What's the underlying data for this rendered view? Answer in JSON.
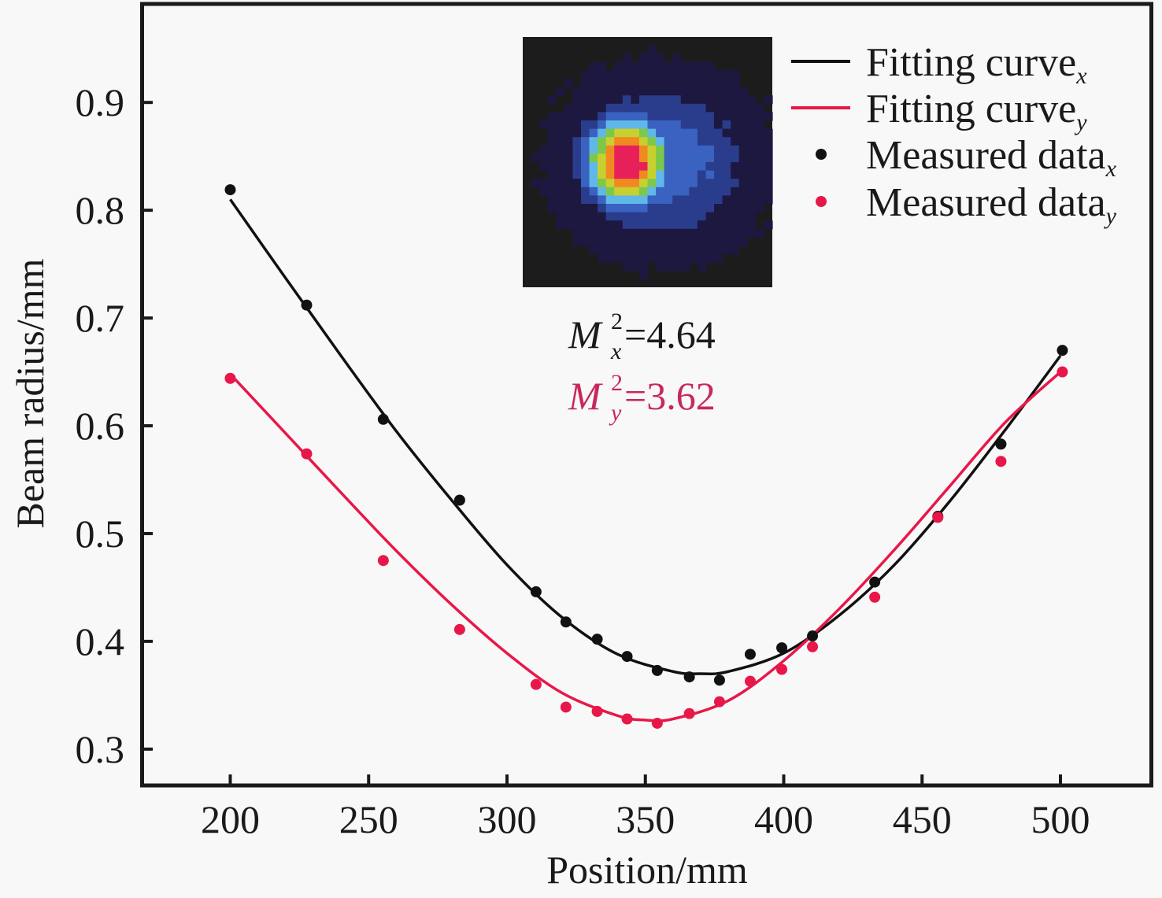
{
  "chart_data": {
    "type": "scatter",
    "title": "",
    "xlabel": "Position/mm",
    "ylabel": "Beam radius/mm",
    "xlim": [
      168,
      533
    ],
    "ylim": [
      0.2663,
      0.9914
    ],
    "xticks": [
      200,
      250,
      300,
      350,
      400,
      450,
      500
    ],
    "xtick_labels": [
      "200",
      "250",
      "300",
      "350",
      "400",
      "450",
      "500"
    ],
    "yticks": [
      0.3,
      0.4,
      0.5,
      0.6,
      0.7,
      0.8,
      0.9
    ],
    "ytick_labels": [
      "0.3",
      "0.4",
      "0.5",
      "0.6",
      "0.7",
      "0.8",
      "0.9"
    ],
    "grid": false,
    "legend_position": "top-right",
    "legend": [
      {
        "label": "Fitting curve",
        "sub": "x",
        "kind": "line",
        "color": "#111111"
      },
      {
        "label": "Fitting curve",
        "sub": "y",
        "kind": "line",
        "color": "#e8174a"
      },
      {
        "label": "Measured data",
        "sub": "x",
        "kind": "marker",
        "color": "#111111"
      },
      {
        "label": "Measured data",
        "sub": "y",
        "kind": "marker",
        "color": "#e8174a"
      }
    ],
    "series": [
      {
        "name": "Measured data_x",
        "kind": "scatter",
        "color": "#111111",
        "x": [
          200,
          227.6,
          255.3,
          282.9,
          310.5,
          321.3,
          332.6,
          343.4,
          354.3,
          365.9,
          376.8,
          387.9,
          399.3,
          410.4,
          432.9,
          455.7,
          478.5,
          500.7
        ],
        "y": [
          0.819,
          0.712,
          0.606,
          0.531,
          0.446,
          0.418,
          0.402,
          0.386,
          0.373,
          0.367,
          0.364,
          0.388,
          0.394,
          0.405,
          0.455,
          0.516,
          0.583,
          0.67
        ]
      },
      {
        "name": "Measured data_y",
        "kind": "scatter",
        "color": "#e8174a",
        "x": [
          200,
          227.6,
          255.3,
          282.9,
          310.5,
          321.3,
          332.6,
          343.4,
          354.3,
          365.9,
          376.8,
          387.9,
          399.3,
          410.4,
          432.9,
          455.7,
          478.5,
          500.7
        ],
        "y": [
          0.644,
          0.574,
          0.475,
          0.411,
          0.36,
          0.339,
          0.335,
          0.328,
          0.324,
          0.333,
          0.344,
          0.363,
          0.374,
          0.395,
          0.441,
          0.515,
          0.567,
          0.65
        ]
      },
      {
        "name": "Fitting curve_x",
        "kind": "line",
        "color": "#111111",
        "x": [
          200,
          220,
          240,
          260,
          280,
          300,
          320,
          340,
          360,
          370,
          380,
          400,
          420,
          440,
          460,
          480,
          500
        ],
        "y": [
          0.81,
          0.737,
          0.665,
          0.595,
          0.531,
          0.471,
          0.422,
          0.388,
          0.372,
          0.37,
          0.372,
          0.389,
          0.424,
          0.471,
          0.53,
          0.596,
          0.665
        ]
      },
      {
        "name": "Fitting curve_y",
        "kind": "line",
        "color": "#e8174a",
        "x": [
          200,
          220,
          240,
          260,
          280,
          300,
          320,
          340,
          350,
          360,
          380,
          400,
          420,
          440,
          460,
          480,
          500
        ],
        "y": [
          0.648,
          0.593,
          0.538,
          0.484,
          0.434,
          0.389,
          0.352,
          0.331,
          0.327,
          0.328,
          0.345,
          0.382,
          0.43,
          0.485,
          0.544,
          0.603,
          0.65
        ]
      }
    ],
    "annotations": [
      {
        "symbol": "M",
        "sup": "2",
        "sub": "x",
        "text": "=4.64",
        "color": "#1a1a1a"
      },
      {
        "symbol": "M",
        "sup": "2",
        "sub": "y",
        "text": "=3.62",
        "color": "#c8285a"
      }
    ],
    "inset": {
      "description": "beam profile intensity image",
      "colormap": [
        "#1c1c1c",
        "#1d1840",
        "#2a3c8c",
        "#3a62c0",
        "#60b8e8",
        "#7cc84a",
        "#c8d030",
        "#f08a20",
        "#e8205a"
      ]
    }
  }
}
